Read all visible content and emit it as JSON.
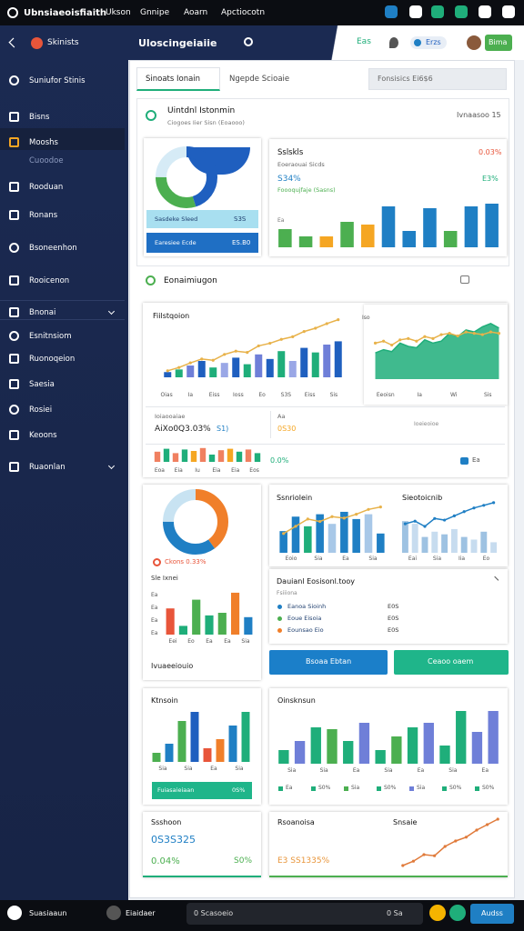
{
  "top_bar": {
    "brand": "Ubnsiaeoisfiaith",
    "menu": [
      "Ukson",
      "Gnnipe",
      "Aoarn",
      "Apctiocotn"
    ]
  },
  "sidebar": {
    "title": "Skinists",
    "items": [
      "Suniufor Stinis",
      "Bisns",
      "Mooshs",
      "Cuoodoe",
      "Rooduan",
      "Ronans",
      "Bsoneenhon",
      "Rooicenon",
      "Bnonai",
      "Esnitnsiom",
      "Ruonoqeion",
      "Saesia",
      "Rosiei",
      "Keoons",
      "Ruaonlan"
    ]
  },
  "header": {
    "title": "Uloscingeiaiie",
    "status": "Eas",
    "toggle": "Erzs",
    "button": "Bima"
  },
  "tabs": [
    "Sinoats Ionain",
    "Ngepde Scioaie"
  ],
  "search": "Fonsisics  Ei6$6",
  "overview": {
    "title": "Uintdnl Istonmin",
    "subtitle": "Ciogoes Iier Sisn (Eoaooo)",
    "link": "Ivnaasoo  15",
    "donut": {
      "type": "donut",
      "values": [
        45,
        30,
        25
      ],
      "colors": [
        "#1f5fbf",
        "#4caf50",
        "#d6ebf6"
      ]
    },
    "stat_a": {
      "label": "Sasdeke Sleed",
      "value": "S3S"
    },
    "stat_b": {
      "label": "Earesiee Ecde",
      "value": "ES.B0"
    },
    "sales": {
      "title": "Sslskls",
      "change": "0.03%",
      "subtitle": "Eoeraouai Sicds",
      "value": "S34%",
      "value_b": "E3%",
      "note": "Foooqujfaje (Sasns)",
      "axis_label": "Ea",
      "chart": {
        "type": "bar",
        "ylim": [
          0,
          50
        ],
        "values": [
          20,
          12,
          12,
          28,
          25,
          45,
          18,
          43,
          18,
          45,
          48
        ],
        "colors": [
          "#4caf50",
          "#4caf50",
          "#f5a623",
          "#4caf50",
          "#f5a623",
          "#1f7fc4",
          "#1f7fc4",
          "#1f7fc4",
          "#4caf50",
          "#1f7fc4",
          "#1f7fc4"
        ]
      }
    }
  },
  "analytics": {
    "title": "Eonaimiugon",
    "left": {
      "title": "Fiilstqoion",
      "ticks": [
        "Oias",
        "Ia",
        "Eiss",
        "Ioss",
        "Eo",
        "S3S",
        "Eiss",
        "Sis"
      ],
      "chart": {
        "type": "combo",
        "ylim": [
          0,
          100
        ],
        "series": [
          {
            "type": "bar",
            "values": [
              8,
              12,
              18,
              25,
              15,
              22,
              30,
              20,
              35,
              28,
              40,
              25,
              45,
              38,
              50,
              55
            ],
            "colors": [
              "#1f5fbf",
              "#1fae7a",
              "#6f7fd8",
              "#1f5fbf",
              "#1fae7a",
              "#9aa7e6",
              "#1f5fbf",
              "#1fae7a",
              "#6f7fd8",
              "#1f5fbf",
              "#1fae7a",
              "#9aa7e6",
              "#1f5fbf",
              "#1fae7a",
              "#6f7fd8",
              "#1f5fbf"
            ]
          },
          {
            "type": "line",
            "color": "#e8b24a",
            "values": [
              10,
              15,
              22,
              28,
              26,
              35,
              40,
              38,
              48,
              52,
              58,
              62,
              70,
              75,
              82,
              88
            ]
          }
        ]
      }
    },
    "right": {
      "axis_label": "Iso",
      "ticks": [
        "Eeoisn",
        "Ia",
        "Wi",
        "Sis"
      ],
      "chart": {
        "type": "combo",
        "ylim": [
          0,
          100
        ],
        "series": [
          {
            "type": "area",
            "color": "#1fae7a",
            "values": [
              40,
              45,
              42,
              55,
              50,
              48,
              60,
              55,
              58,
              70,
              65,
              75,
              72,
              80,
              85,
              78
            ]
          },
          {
            "type": "line",
            "color": "#e8b24a",
            "values": [
              55,
              58,
              52,
              60,
              62,
              58,
              65,
              62,
              68,
              70,
              66,
              72,
              70,
              68,
              72,
              70
            ]
          }
        ]
      }
    },
    "summary": {
      "label": "Ioiaooaiae",
      "value": "AiXo0Q3.03%",
      "value_b": "S1)",
      "right_label": "Aa",
      "right_value": "0S30",
      "right_note": "Ioeieoioe"
    },
    "mini": {
      "ticks": [
        "Eoa",
        "Eia",
        "Iu",
        "Eia",
        "Eia",
        "Eos"
      ],
      "value": "0.0%",
      "action": "Ea",
      "chart": {
        "type": "bar",
        "ylim": [
          0,
          100
        ],
        "values": [
          70,
          90,
          60,
          85,
          75,
          95,
          50,
          80,
          90,
          70,
          85,
          60
        ],
        "colors": [
          "#f08060",
          "#1fae7a",
          "#f08060",
          "#1fae7a",
          "#f5a623",
          "#f08060",
          "#1fae7a",
          "#f08060",
          "#f5a623",
          "#1fae7a",
          "#f08060",
          "#1fae7a"
        ]
      }
    }
  },
  "breakdown": {
    "label": "Ckons 0.33%",
    "chart_title": "Sle Ixnei",
    "axis_labels": [
      "Ea",
      "Ea",
      "Ea",
      "Ea"
    ],
    "ticks": [
      "Eei",
      "Eo",
      "Ea",
      "Ea",
      "Sia"
    ],
    "footer": "Ivuaeeiouio",
    "donut": {
      "type": "donut",
      "values": [
        40,
        35,
        25
      ],
      "colors": [
        "#f07f2a",
        "#1f7fc4",
        "#c8e3f2"
      ]
    },
    "chart": {
      "type": "bar",
      "ylim": [
        0,
        50
      ],
      "values": [
        30,
        10,
        40,
        22,
        25,
        48,
        20
      ],
      "colors": [
        "#e8553a",
        "#1fae7a",
        "#4caf50",
        "#1fae7a",
        "#4caf50",
        "#f07f2a",
        "#1f7fc4"
      ]
    }
  },
  "trends": {
    "left": {
      "title": "Ssnriolein",
      "ticks": [
        "Eoio",
        "Sia",
        "Ea",
        "Sia"
      ],
      "chart": {
        "type": "combo",
        "ylim": [
          0,
          100
        ],
        "series": [
          {
            "type": "bar",
            "values": [
              45,
              75,
              55,
              80,
              60,
              85,
              70,
              80,
              40
            ],
            "colors": [
              "#1f7fc4",
              "#1f7fc4",
              "#1fae7a",
              "#1f7fc4",
              "#a8c8e8",
              "#1f7fc4",
              "#1f7fc4",
              "#a8c8e8",
              "#1f7fc4"
            ]
          },
          {
            "type": "line",
            "color": "#e8b24a",
            "values": [
              40,
              55,
              70,
              65,
              75,
              72,
              80,
              90,
              95
            ]
          }
        ]
      }
    },
    "right": {
      "title": "Sieotoicnib",
      "ticks": [
        "Eai",
        "Sia",
        "Iia",
        "Eo"
      ],
      "chart": {
        "type": "combo",
        "ylim": [
          0,
          100
        ],
        "series": [
          {
            "type": "bar",
            "values": [
              60,
              55,
              30,
              40,
              35,
              45,
              30,
              25,
              40,
              20
            ],
            "colors": [
              "#9ec2e2",
              "#c7dcef",
              "#9ec2e2",
              "#c7dcef",
              "#9ec2e2",
              "#c7dcef",
              "#9ec2e2",
              "#c7dcef",
              "#9ec2e2",
              "#c7dcef"
            ]
          },
          {
            "type": "line",
            "color": "#1f7fc4",
            "values": [
              55,
              60,
              50,
              65,
              62,
              70,
              78,
              85,
              90,
              95
            ]
          }
        ]
      }
    }
  },
  "details": {
    "title": "Dauianl Eosisonl.tooy",
    "subtitle": "Fsiiiona",
    "rows": [
      {
        "label": "Eanoa Sioinh",
        "value": "E0S"
      },
      {
        "label": "Eoue Eisoia",
        "value": "E0S"
      },
      {
        "label": "Eounsao Eio",
        "value": "E0S"
      }
    ]
  },
  "buttons": [
    "Bsoaa Ebtan",
    "Ceaoo oaem"
  ],
  "kpi": {
    "title": "Ktnsoin",
    "ticks": [
      "Sia",
      "Sia",
      "Ea",
      "Sia"
    ],
    "bar_label": "Fuiasaieiaan",
    "bar_value": "0S%",
    "chart": {
      "type": "bar",
      "ylim": [
        0,
        60
      ],
      "values": [
        10,
        20,
        45,
        55,
        15,
        25,
        40,
        55
      ],
      "colors": [
        "#4caf50",
        "#1f7fc4",
        "#4caf50",
        "#1f5fbf",
        "#e8553a",
        "#f07f2a",
        "#1f7fc4",
        "#1fae7a"
      ]
    }
  },
  "orders": {
    "title": "Oinsknsun",
    "ticks": [
      "Sia",
      "Sia",
      "Ea",
      "Sia",
      "Ea",
      "Sia",
      "Ea"
    ],
    "legend": [
      "Ea",
      "S0%",
      "Sia",
      "S0%",
      "Sia",
      "S0%",
      "S0%"
    ],
    "chart": {
      "type": "bar",
      "ylim": [
        0,
        60
      ],
      "values": [
        15,
        25,
        40,
        38,
        25,
        45,
        15,
        30,
        40,
        45,
        20,
        58,
        35,
        58
      ],
      "colors": [
        "#1fae7a",
        "#6f7fd8",
        "#1fae7a",
        "#4caf50",
        "#1fae7a",
        "#6f7fd8",
        "#1fae7a",
        "#4caf50",
        "#1fae7a",
        "#6f7fd8",
        "#1fae7a",
        "#1fae7a",
        "#6f7fd8",
        "#6f7fd8"
      ]
    }
  },
  "summary_left": {
    "title": "Ssshoon",
    "value": "0S3S325",
    "change": "0.04%",
    "value_b": "S0%"
  },
  "summary_right": {
    "title": "Rsoanoisa",
    "value": "E3 SS1335%",
    "chart_title": "Snsaie",
    "chart": {
      "type": "line",
      "ylim": [
        0,
        100
      ],
      "color": "#e07a3a",
      "values": [
        10,
        18,
        30,
        28,
        45,
        55,
        62,
        75,
        85,
        95
      ]
    }
  },
  "bottom_bar": {
    "user": "Suasiaaun",
    "app": "Eiaidaer",
    "status": "0 Scasoeio",
    "count": "0 Sa",
    "button": "Audss"
  }
}
